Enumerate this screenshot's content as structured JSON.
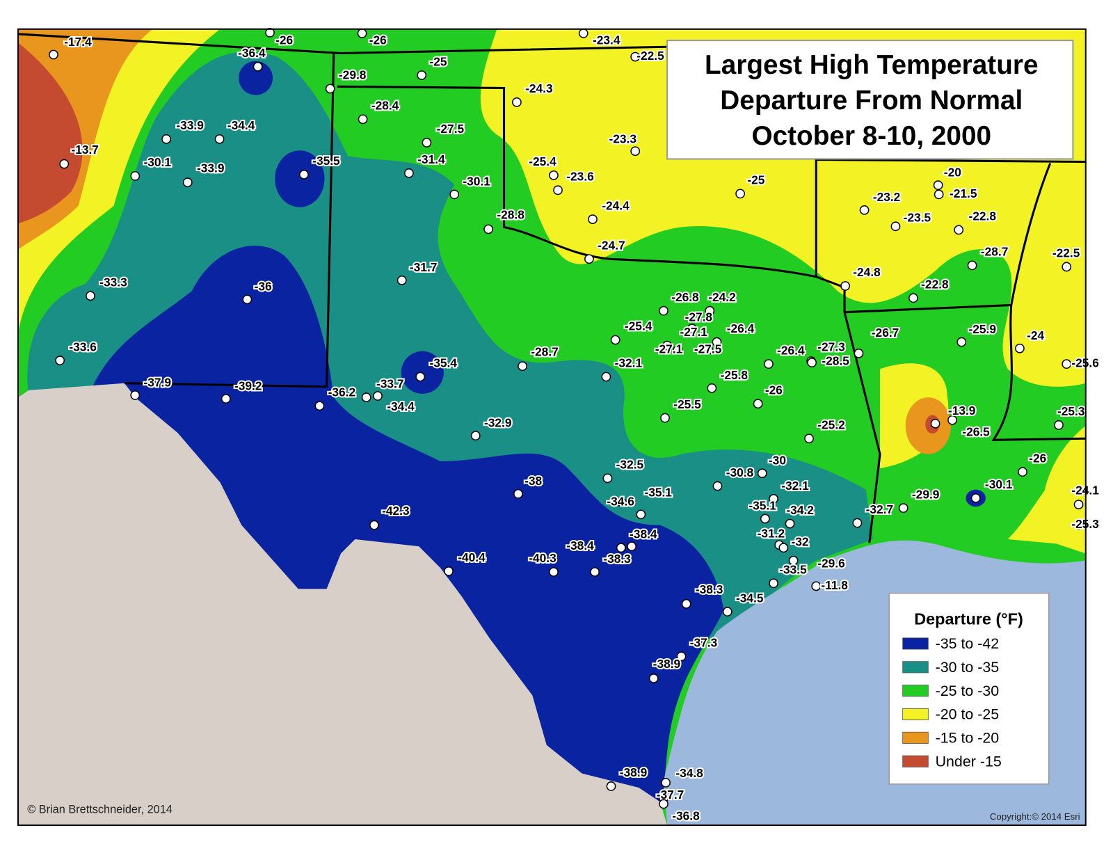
{
  "title_lines": [
    "Largest High Temperature",
    "Departure From Normal",
    "October 8-10, 2000"
  ],
  "legend": {
    "title": "Departure (°F)",
    "entries": [
      {
        "label": "-35 to -42",
        "color": "#0a23a0"
      },
      {
        "label": "-30 to -35",
        "color": "#1a8f86"
      },
      {
        "label": "-25 to -30",
        "color": "#22cc22"
      },
      {
        "label": "-20 to -25",
        "color": "#f2f224"
      },
      {
        "label": "-15 to -20",
        "color": "#e8961e"
      },
      {
        "label": "Under -15",
        "color": "#c44a30"
      }
    ]
  },
  "stations": [
    -17.4,
    -26,
    -26,
    -23.4,
    -22.5,
    -36.4,
    -29.8,
    -25,
    -24.3,
    -28.4,
    -27.5,
    -33.9,
    -34.4,
    -13.7,
    -30.1,
    -33.9,
    -35.5,
    -31.4,
    -30.1,
    -25.4,
    -23.6,
    -23.3,
    -25,
    -20,
    -21.5,
    -23.2,
    -23.5,
    -22.8,
    -24.4,
    -28.8,
    -24.7,
    -28.7,
    -22.5,
    -31.7,
    -33.3,
    -36,
    -24.8,
    -22.8,
    -26.8,
    -24.2,
    -27.8,
    -25.4,
    -27.1,
    -26.4,
    -26.7,
    -25.9,
    -24,
    -27.1,
    -27.5,
    -26.4,
    -27.3,
    -28.5,
    -25.6,
    -33.6,
    -28.7,
    -32.1,
    -35.4,
    -37.9,
    -39.2,
    -36.2,
    -33.7,
    -34.4,
    -25.8,
    -26,
    -25.5,
    -13.9,
    -25.3,
    -26.5,
    -25.2,
    -32.9,
    -26,
    -30,
    -32.5,
    -30.8,
    -38,
    -32.1,
    -30.1,
    -35.1,
    -24.1,
    -34.6,
    -29.9,
    -35.1,
    -34.2,
    -32.7,
    -42.3,
    -25.3,
    -31.2,
    -38.4,
    -32,
    -38.4,
    -40.4,
    -40.3,
    -38.3,
    -29.6,
    -33.5,
    -11.8,
    -38.3,
    -34.5,
    -37.3,
    -38.9,
    -38.9,
    -34.8,
    -37.7,
    -36.8
  ],
  "credit": "© Brian Brettschneider, 2014",
  "copyright": "Copyright:© 2014 Esri"
}
